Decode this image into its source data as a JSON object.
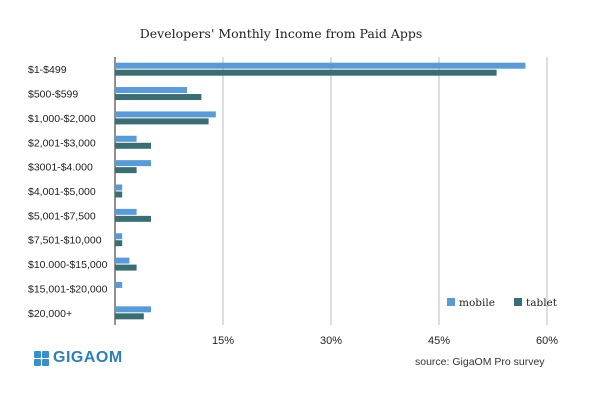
{
  "chart_data": {
    "type": "bar",
    "orientation": "horizontal",
    "title": "Developers' Monthly Income from Paid Apps",
    "categories": [
      "$1-$499",
      "$500-$599",
      "$1,000-$2,000",
      "$2,001-$3,000",
      "$3001-$4.000",
      "$4,001-$5,000",
      "$5,001-$7,500",
      "$7,501-$10,000",
      "$10.000-$15,000",
      "$15,001-$20,000",
      "$20,000+"
    ],
    "series": [
      {
        "name": "mobile",
        "color": "#5b9bd5",
        "values": [
          57,
          10,
          14,
          3,
          5,
          1,
          3,
          1,
          2,
          1,
          5
        ]
      },
      {
        "name": "tablet",
        "color": "#3a6e72",
        "values": [
          53,
          12,
          13,
          5,
          3,
          1,
          5,
          1,
          3,
          0,
          4
        ]
      }
    ],
    "xlim": [
      0,
      60
    ],
    "xticks": [
      "15%",
      "30%",
      "45%",
      "60%"
    ],
    "xtick_values": [
      15,
      30,
      45,
      60
    ],
    "grid": true,
    "legend": "bottom-right"
  },
  "source": "source: GigaOM Pro survey",
  "logo": "GIGAOM"
}
